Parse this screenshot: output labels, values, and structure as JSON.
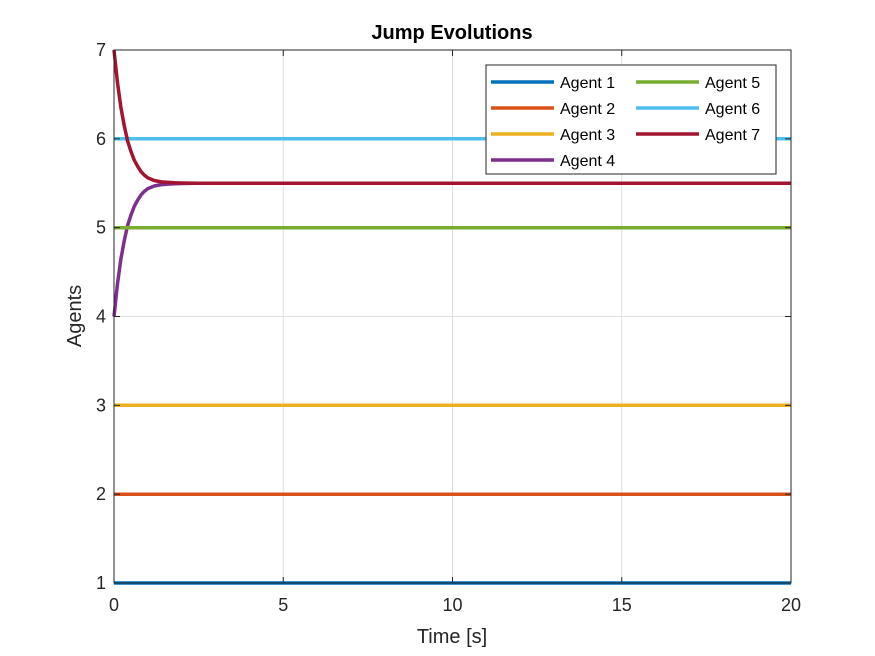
{
  "chart_data": {
    "type": "line",
    "title": "Jump Evolutions",
    "xlabel": "Time [s]",
    "ylabel": "Agents",
    "xlim": [
      0,
      20
    ],
    "ylim": [
      1,
      7
    ],
    "xticks": [
      0,
      5,
      10,
      15,
      20
    ],
    "yticks": [
      1,
      2,
      3,
      4,
      5,
      6,
      7
    ],
    "grid": true,
    "legend_placement": "top-right",
    "legend_columns": 2,
    "converge_value": 5.5,
    "series": [
      {
        "name": "Agent 1",
        "color": "#0072BD",
        "x": [
          0,
          20
        ],
        "y": [
          1,
          1
        ]
      },
      {
        "name": "Agent 2",
        "color": "#D95319",
        "x": [
          0,
          20
        ],
        "y": [
          2,
          2
        ]
      },
      {
        "name": "Agent 3",
        "color": "#EDB120",
        "x": [
          0,
          20
        ],
        "y": [
          3,
          3
        ]
      },
      {
        "name": "Agent 4",
        "color": "#7E2F8E",
        "x": [
          0,
          0.1,
          0.2,
          0.3,
          0.4,
          0.5,
          0.6,
          0.7,
          0.8,
          0.9,
          1.0,
          1.2,
          1.4,
          1.6,
          1.8,
          2.0,
          2.5,
          3.0,
          3.5,
          4.0,
          5,
          10,
          15,
          20
        ],
        "y": [
          4.0,
          4.36,
          4.64,
          4.85,
          5.02,
          5.14,
          5.24,
          5.31,
          5.37,
          5.41,
          5.44,
          5.47,
          5.485,
          5.49,
          5.495,
          5.497,
          5.499,
          5.5,
          5.5,
          5.5,
          5.5,
          5.5,
          5.5,
          5.5
        ]
      },
      {
        "name": "Agent 5",
        "color": "#77AC30",
        "x": [
          0,
          20
        ],
        "y": [
          5,
          5
        ]
      },
      {
        "name": "Agent 6",
        "color": "#4DBEEE",
        "x": [
          0,
          20
        ],
        "y": [
          6,
          6
        ]
      },
      {
        "name": "Agent 7",
        "color": "#A2142F",
        "x": [
          0,
          0.1,
          0.2,
          0.3,
          0.4,
          0.5,
          0.6,
          0.7,
          0.8,
          0.9,
          1.0,
          1.2,
          1.4,
          1.6,
          1.8,
          2.0,
          2.5,
          3.0,
          3.5,
          4.0,
          5,
          10,
          15,
          20
        ],
        "y": [
          7.0,
          6.64,
          6.36,
          6.15,
          5.98,
          5.86,
          5.76,
          5.69,
          5.63,
          5.59,
          5.56,
          5.53,
          5.515,
          5.51,
          5.505,
          5.503,
          5.501,
          5.5,
          5.5,
          5.5,
          5.5,
          5.5,
          5.5,
          5.5
        ]
      }
    ]
  }
}
